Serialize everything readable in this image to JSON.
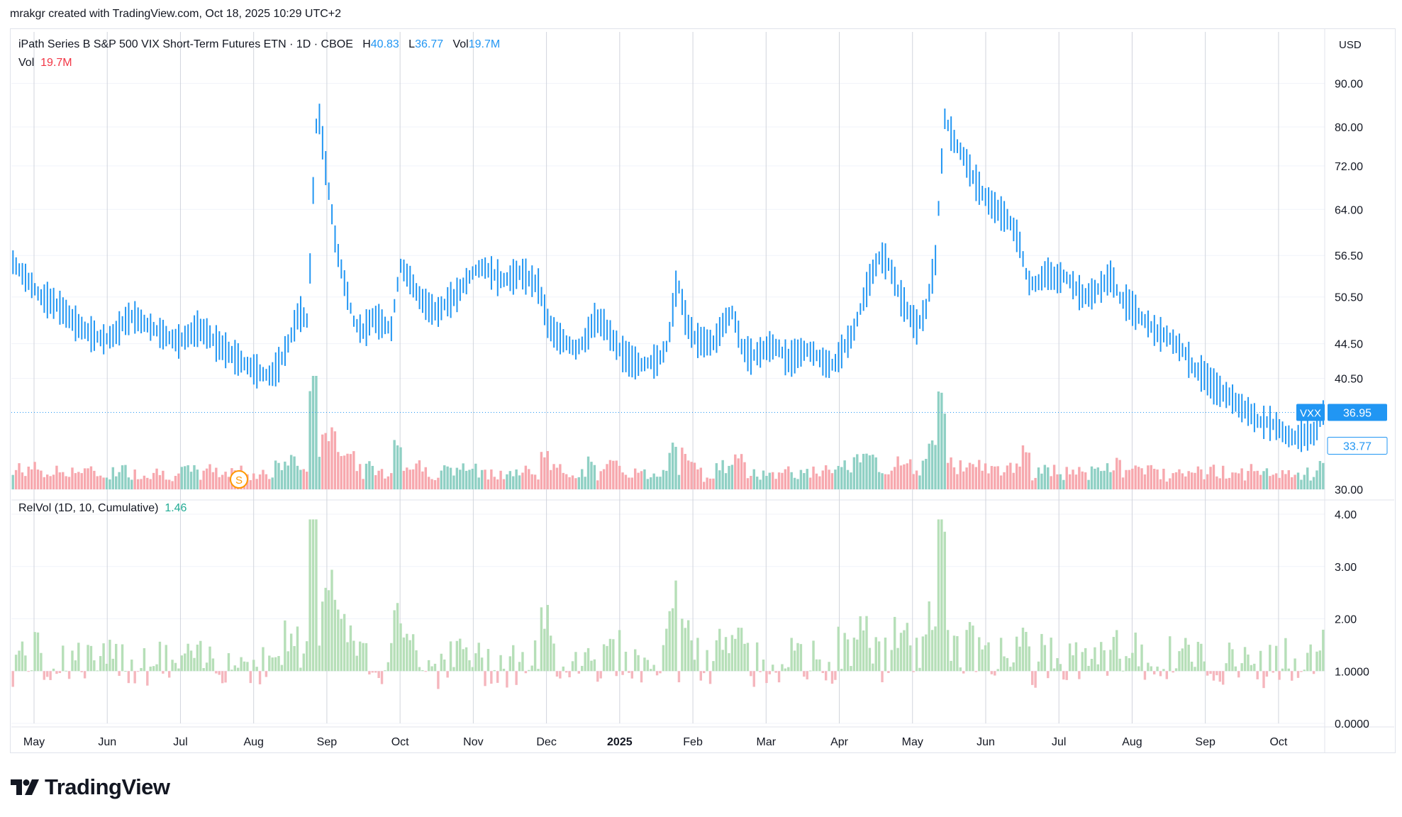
{
  "credit": "mrakgr created with TradingView.com, Oct 18, 2025 10:29 UTC+2",
  "legend": {
    "title": "iPath Series B S&P 500 VIX Short-Term Futures ETN · 1D · CBOE",
    "h_label": "H",
    "h_value": "40.83",
    "l_label": "L",
    "l_value": "36.77",
    "vol_label": "Vol",
    "vol_value": "19.7M",
    "vol_pane_label": "Vol",
    "vol_pane_value": "19.7M",
    "relvol_label": "RelVol (1D, 10, Cumulative)",
    "relvol_value": "1.46"
  },
  "currency": "USD",
  "brand": "TradingView",
  "icons": {
    "logo": "tradingview-logo-icon",
    "split_marker": "split-marker-icon"
  },
  "colors": {
    "price": "#2196f3",
    "up": "#8fd0c4",
    "down": "#f7a8ae",
    "relvol_up": "#b6dfb8",
    "relvol_down": "#f5b6bd",
    "last_line": "#2196f3"
  },
  "chart_data": [
    {
      "type": "line",
      "series": [
        {
          "values": [
            55.5,
            53.8,
            52.2,
            50.5,
            50.0,
            49.2,
            48.0,
            46.8,
            46.0,
            45.4,
            45.0,
            45.6,
            47.2,
            48.0,
            47.2,
            46.5,
            45.8,
            45.2,
            44.8,
            45.5,
            46.4,
            45.8,
            44.6,
            43.8,
            43.0,
            42.2,
            41.6,
            41.0,
            40.8,
            42.4,
            45.0,
            48.5,
            47.2,
            85.0,
            70.0,
            58.0,
            52.0,
            47.0,
            46.0,
            47.8,
            47.0,
            46.3,
            55.0,
            53.0,
            50.5,
            49.2,
            48.4,
            49.8,
            50.6,
            52.5,
            54.2,
            54.8,
            53.8,
            52.8,
            53.2,
            54.0,
            53.0,
            52.0,
            46.8,
            45.4,
            44.6,
            43.8,
            44.9,
            47.5,
            47.0,
            45.0,
            43.4,
            42.5,
            42.0,
            42.3,
            42.6,
            44.5,
            53.0,
            47.0,
            45.0,
            44.7,
            44.6,
            47.0,
            48.5,
            44.0,
            43.0,
            43.5,
            44.2,
            44.0,
            42.5,
            43.3,
            43.8,
            43.2,
            42.2,
            42.0,
            44.0,
            45.6,
            49.5,
            53.5,
            56.5,
            55.0,
            51.0,
            48.5,
            46.5,
            49.0,
            56.0,
            82.0,
            77.0,
            74.0,
            70.0,
            67.0,
            65.0,
            63.5,
            62.0,
            59.0,
            52.5,
            52.3,
            54.0,
            53.0,
            53.5,
            52.0,
            50.5,
            51.0,
            52.0,
            53.5,
            50.3,
            49.5,
            48.0,
            47.0,
            45.8,
            45.5,
            44.5,
            43.5,
            41.5,
            41.0,
            39.8,
            39.0,
            38.5,
            37.5,
            37.0,
            36.0,
            36.0,
            35.6,
            34.7,
            34.5,
            34.8,
            34.9,
            36.95
          ]
        }
      ],
      "last_value_label": "36.95",
      "last_ticker": "VXX",
      "y_ticks": [
        "90.00",
        "80.00",
        "72.00",
        "64.00",
        "56.50",
        "50.50",
        "44.50",
        "40.50",
        "30.00"
      ],
      "scale": "log",
      "ylim": [
        30,
        94
      ]
    },
    {
      "type": "bar",
      "name": "Vol",
      "last_value_label": "33.77"
    },
    {
      "type": "bar",
      "name": "RelVol (1D, 10, Cumulative)",
      "y_ticks": [
        "4.00",
        "3.00",
        "2.00",
        "1.0000",
        "0.0000"
      ],
      "ylim": [
        0,
        4
      ],
      "baseline": 1.0
    }
  ],
  "x_ticks": [
    "May",
    "Jun",
    "Jul",
    "Aug",
    "Sep",
    "Oct",
    "Nov",
    "Dec",
    "2025",
    "Feb",
    "Mar",
    "Apr",
    "May",
    "Jun",
    "Jul",
    "Aug",
    "Sep",
    "Oct"
  ]
}
